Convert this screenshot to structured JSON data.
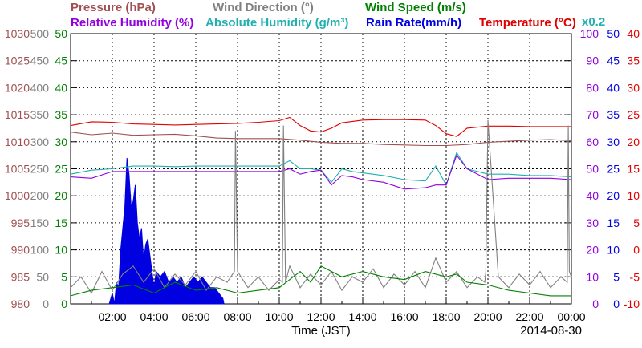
{
  "chart_data": {
    "type": "line",
    "date": "2014-08-30",
    "xlabel": "Time (JST)",
    "x_ticks": [
      "02:00",
      "04:00",
      "06:00",
      "08:00",
      "10:00",
      "12:00",
      "14:00",
      "16:00",
      "18:00",
      "20:00",
      "22:00",
      "00:00"
    ],
    "x_range_hours": [
      0,
      24
    ],
    "grid": true,
    "headers": {
      "row1": [
        {
          "name": "pressure",
          "text": "Pressure (hPa)",
          "color": "#a05050"
        },
        {
          "name": "wind-direction",
          "text": "Wind Direction (°)",
          "color": "#808080"
        },
        {
          "name": "wind-speed",
          "text": "Wind Speed (m/s)",
          "color": "#008000"
        }
      ],
      "row2": [
        {
          "name": "relative-humidity",
          "text": "Relative Humidity (%)",
          "color": "#9000e0"
        },
        {
          "name": "absolute-humidity",
          "text": "Absolute Humidity (g/m³)",
          "color": "#20b0b0"
        },
        {
          "name": "rain-rate",
          "text": "Rain Rate(mm/h)",
          "color": "#0000e0"
        },
        {
          "name": "temperature",
          "text": "Temperature (°C)",
          "color": "#e00000"
        }
      ],
      "multiplier": {
        "text": "x0.2",
        "color": "#20b0b0"
      }
    },
    "axes": {
      "pressure": {
        "ticks": [
          "1030",
          "1025",
          "1020",
          "1015",
          "1010",
          "1005",
          "1000",
          "995",
          "990",
          "985",
          "980"
        ],
        "range": [
          980,
          1030
        ],
        "color": "#a05050"
      },
      "wind_direction": {
        "ticks": [
          "500",
          "450",
          "400",
          "350",
          "300",
          "250",
          "200",
          "150",
          "100",
          "50",
          "0"
        ],
        "range": [
          0,
          500
        ],
        "color": "#808080"
      },
      "wind_speed": {
        "ticks": [
          "50",
          "45",
          "40",
          "35",
          "30",
          "25",
          "20",
          "15",
          "10",
          "5",
          "0"
        ],
        "range": [
          0,
          50
        ],
        "color": "#008000"
      },
      "relative_humidity": {
        "ticks": [
          "100",
          "90",
          "80",
          "70",
          "60",
          "50",
          "40",
          "30",
          "20",
          "10",
          "0"
        ],
        "range": [
          0,
          100
        ],
        "color": "#9000e0"
      },
      "rain_rate": {
        "ticks": [
          "50",
          "45",
          "40",
          "35",
          "30",
          "25",
          "20",
          "15",
          "10",
          "5",
          "0"
        ],
        "range": [
          0,
          50
        ],
        "color": "#0000e0"
      },
      "temperature": {
        "ticks": [
          "40",
          "35",
          "30",
          "25",
          "20",
          "15",
          "10",
          "5",
          "0",
          "-5",
          "-10"
        ],
        "range": [
          -10,
          40
        ],
        "color": "#e00000"
      }
    },
    "series": [
      {
        "name": "Temperature",
        "color": "#e00000",
        "axis": "temperature",
        "x": [
          0,
          1,
          2,
          3,
          4,
          5,
          6,
          7,
          8,
          9,
          10,
          10.5,
          11,
          11.5,
          12,
          12.5,
          13,
          14,
          15,
          16,
          17,
          17.5,
          18,
          18.5,
          19,
          20,
          21,
          22,
          23,
          24
        ],
        "y": [
          23,
          23.7,
          23.6,
          23.3,
          23.2,
          23.1,
          23.2,
          23.3,
          23.4,
          23.6,
          23.9,
          24.5,
          23,
          22,
          21.8,
          22.5,
          23.5,
          24,
          24.1,
          24.1,
          24,
          23,
          21.5,
          21,
          22.5,
          22.9,
          22.9,
          22.8,
          22.8,
          22.8
        ]
      },
      {
        "name": "Pressure",
        "color": "#a05050",
        "axis": "pressure",
        "x": [
          0,
          1,
          2,
          3,
          4,
          5,
          6,
          7,
          8,
          9,
          10,
          11,
          12,
          13,
          14,
          15,
          16,
          17,
          18,
          19,
          20,
          21,
          22,
          23,
          24
        ],
        "y": [
          1011.8,
          1011.3,
          1011.6,
          1011.2,
          1011.3,
          1011.4,
          1011.1,
          1010.7,
          1010.6,
          1010.6,
          1010.6,
          1010.3,
          1009.9,
          1009.7,
          1009.7,
          1009.5,
          1009.4,
          1009.3,
          1009.3,
          1009.5,
          1009.9,
          1010.1,
          1010.3,
          1010.4,
          1010.2
        ]
      },
      {
        "name": "Absolute Humidity",
        "color": "#20b0b0",
        "axis": "relative_humidity",
        "x": [
          0,
          1,
          2,
          3,
          4,
          5,
          6,
          7,
          8,
          9,
          10,
          10.5,
          11,
          11.5,
          12,
          12.5,
          13,
          13.5,
          14,
          15,
          16,
          17,
          17.5,
          18,
          18.5,
          19,
          20,
          21,
          22,
          23,
          24
        ],
        "y": [
          48,
          49.5,
          50,
          51,
          51,
          50.8,
          51,
          51,
          51,
          51,
          51,
          53,
          50,
          50,
          49.5,
          45,
          50,
          49,
          48.5,
          47.5,
          46,
          45.5,
          51,
          44,
          56,
          50,
          48,
          48,
          47.5,
          47.5,
          47
        ]
      },
      {
        "name": "Relative Humidity",
        "color": "#9000e0",
        "axis": "relative_humidity",
        "x": [
          0,
          1,
          2,
          3,
          4,
          5,
          6,
          7,
          8,
          9,
          10,
          10.5,
          11,
          11.5,
          12,
          12.5,
          13,
          13.5,
          14,
          15,
          16,
          17,
          17.5,
          18,
          18.5,
          19,
          20,
          21,
          22,
          23,
          24
        ],
        "y": [
          47,
          46.5,
          49,
          49,
          49,
          49,
          49,
          49,
          49,
          49,
          49,
          50,
          48,
          49,
          49.5,
          44,
          47.5,
          47,
          46,
          45,
          42.5,
          43,
          44,
          44,
          55,
          50,
          46,
          46.5,
          46.5,
          46.5,
          46
        ]
      },
      {
        "name": "Wind Direction",
        "color": "#808080",
        "axis": "wind_direction",
        "x": [
          0,
          0.5,
          1,
          1.5,
          2,
          2.5,
          3,
          3.5,
          4,
          4.5,
          5,
          5.5,
          6,
          6.5,
          7,
          7.5,
          7.85,
          7.9,
          8.0,
          8.5,
          9,
          9.5,
          10,
          10.15,
          10.2,
          10.3,
          10.5,
          11,
          11.5,
          12,
          12.5,
          13,
          13.5,
          14,
          14.5,
          15,
          15.5,
          16,
          16.5,
          17,
          17.5,
          18,
          18.5,
          19,
          19.5,
          19.85,
          19.9,
          20.0,
          20.5,
          21,
          21.5,
          22,
          22.5,
          23,
          23.5,
          23.8,
          23.85,
          23.9,
          24
        ],
        "y": [
          30,
          50,
          20,
          60,
          25,
          55,
          70,
          40,
          65,
          30,
          55,
          35,
          60,
          25,
          50,
          40,
          60,
          320,
          60,
          30,
          50,
          25,
          45,
          40,
          330,
          40,
          70,
          30,
          55,
          35,
          60,
          25,
          50,
          40,
          65,
          30,
          55,
          35,
          60,
          30,
          85,
          40,
          60,
          30,
          50,
          40,
          60,
          340,
          50,
          30,
          55,
          35,
          60,
          30,
          50,
          40,
          330,
          60,
          50
        ]
      },
      {
        "name": "Wind Speed",
        "color": "#008000",
        "axis": "wind_speed",
        "x": [
          0,
          1,
          2,
          3,
          4,
          5,
          6,
          7,
          8,
          9,
          10,
          11,
          11.5,
          12,
          13,
          14,
          15,
          16,
          17,
          18,
          18.5,
          19,
          20,
          21,
          22,
          23,
          24
        ],
        "y": [
          1.5,
          2.5,
          3,
          3.5,
          2,
          4,
          2.5,
          3,
          2,
          2.5,
          3,
          6,
          4,
          7,
          5,
          6,
          5,
          4.5,
          6,
          5,
          5.5,
          4,
          3.5,
          2.5,
          2,
          1.5,
          1.5
        ]
      },
      {
        "name": "Rain Rate",
        "color": "#0000e0",
        "axis": "rain_rate",
        "type": "area",
        "x": [
          1.85,
          2.0,
          2.1,
          2.2,
          2.3,
          2.4,
          2.5,
          2.6,
          2.7,
          2.8,
          2.9,
          3.0,
          3.1,
          3.2,
          3.3,
          3.4,
          3.5,
          3.6,
          3.7,
          3.8,
          3.9,
          4.0,
          4.1,
          4.3,
          4.5,
          4.7,
          4.9,
          5.1,
          5.3,
          5.5,
          5.7,
          5.9,
          6.1,
          6.3,
          6.5,
          6.7,
          6.9,
          7.1,
          7.3,
          7.35
        ],
        "y": [
          0,
          2,
          0,
          4,
          3,
          10,
          14,
          18,
          27,
          24,
          18,
          19,
          22,
          15,
          12,
          14,
          8,
          11,
          12,
          9,
          6,
          3,
          6,
          5,
          6,
          4,
          5,
          4,
          5,
          3,
          4,
          5,
          4,
          5,
          4,
          3,
          3,
          2,
          1,
          0
        ]
      }
    ]
  }
}
